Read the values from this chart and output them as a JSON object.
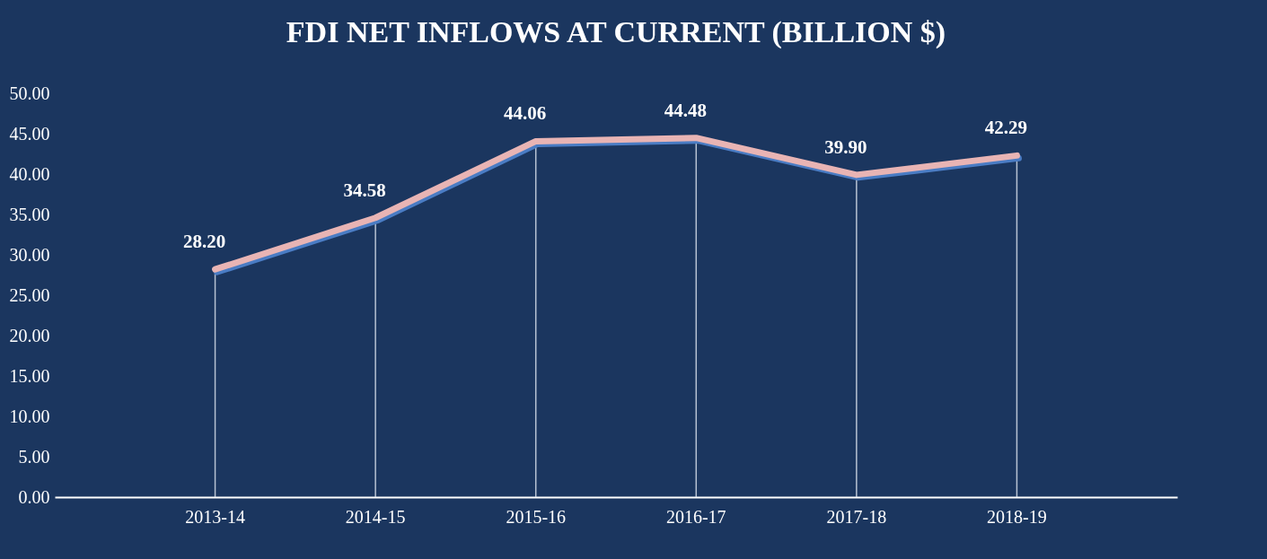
{
  "chart_data": {
    "type": "line",
    "title": "FDI NET INFLOWS AT CURRENT (BILLION $)",
    "categories": [
      "2013-14",
      "2014-15",
      "2015-16",
      "2016-17",
      "2017-18",
      "2018-19"
    ],
    "series": [
      {
        "color": "#e8b4b4",
        "values": [
          28.2,
          34.58,
          44.06,
          44.48,
          39.9,
          42.29
        ],
        "value_labels": [
          "28.20",
          "34.58",
          "44.06",
          "44.48",
          "39.90",
          "42.29"
        ]
      }
    ],
    "ylim": [
      0,
      50
    ],
    "yticks": [
      {
        "value": 0,
        "label": "0.00"
      },
      {
        "value": 5,
        "label": "5.00"
      },
      {
        "value": 10,
        "label": "10.00"
      },
      {
        "value": 15,
        "label": "15.00"
      },
      {
        "value": 20,
        "label": "20.00"
      },
      {
        "value": 25,
        "label": "25.00"
      },
      {
        "value": 30,
        "label": "30.00"
      },
      {
        "value": 35,
        "label": "35.00"
      },
      {
        "value": 40,
        "label": "40.00"
      },
      {
        "value": 45,
        "label": "45.00"
      },
      {
        "value": 50,
        "label": "50.00"
      }
    ],
    "grid": "x",
    "marker": "none",
    "line_style": "solid"
  }
}
